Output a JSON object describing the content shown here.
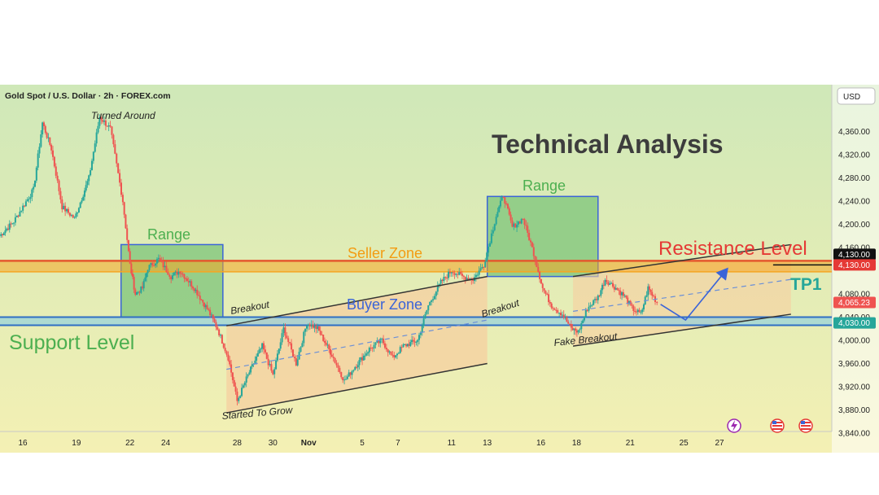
{
  "header": {
    "symbol_title": "Gold Spot / U.S. Dollar · 2h · FOREX.com",
    "currency": "USD"
  },
  "colors": {
    "bg_top": "#cfe8b8",
    "bg_bottom": "#f4f0b4",
    "up": "#26a69a",
    "down": "#ef5350",
    "green_label": "#4caf50",
    "orange_label": "#f39c12",
    "blue_label": "#3a64d8",
    "red_label": "#e53935",
    "range_fill": "#7cc47a",
    "channel_fill": "#f6cfa0",
    "seller_band": "#f5a623",
    "seller_line": "#e4572e",
    "buyer_band": "#8ecfe0",
    "buyer_line": "#2f6fc4"
  },
  "chart_data": {
    "type": "candlestick",
    "title": "Gold Spot / U.S. Dollar · 2h · FOREX.com",
    "y_axis": {
      "unit": "USD",
      "ylim": [
        3840,
        4400
      ],
      "ticks": [
        "4,360.00",
        "4,320.00",
        "4,280.00",
        "4,240.00",
        "4,200.00",
        "4,160.00",
        "4,080.00",
        "4,040.00",
        "4,000.00",
        "3,960.00",
        "3,920.00",
        "3,880.00",
        "3,840.00"
      ],
      "tick_values": [
        4360,
        4320,
        4280,
        4240,
        4200,
        4160,
        4080,
        4040,
        4000,
        3960,
        3920,
        3880,
        3840
      ]
    },
    "x_axis": {
      "ticks": [
        "16",
        "19",
        "22",
        "24",
        "28",
        "30",
        "Nov",
        "5",
        "7",
        "11",
        "13",
        "16",
        "18",
        "21",
        "25",
        "27"
      ],
      "tick_positions": [
        0,
        3,
        6,
        8,
        12,
        14,
        16,
        19,
        21,
        24,
        26,
        29,
        31,
        34,
        37,
        39
      ]
    },
    "price_markers": [
      {
        "label": "4,130.00",
        "value": 4130,
        "color": "#111111"
      },
      {
        "label": "4,130.00",
        "value": 4130,
        "color": "#e53935"
      },
      {
        "label": "4,065.23",
        "value": 4065.23,
        "color": "#ef5350"
      },
      {
        "label": "4,030.00",
        "value": 4030,
        "color": "#26a69a"
      }
    ],
    "key_path": [
      [
        -1.3,
        4180
      ],
      [
        -0.5,
        4205
      ],
      [
        0.6,
        4260
      ],
      [
        1.1,
        4375
      ],
      [
        1.6,
        4330
      ],
      [
        2.2,
        4230
      ],
      [
        2.9,
        4210
      ],
      [
        3.7,
        4280
      ],
      [
        4.3,
        4385
      ],
      [
        4.9,
        4365
      ],
      [
        5.6,
        4240
      ],
      [
        6.0,
        4130
      ],
      [
        6.3,
        4080
      ],
      [
        6.7,
        4090
      ],
      [
        7.0,
        4125
      ],
      [
        7.6,
        4140
      ],
      [
        8.3,
        4110
      ],
      [
        8.8,
        4120
      ],
      [
        9.6,
        4090
      ],
      [
        10.4,
        4050
      ],
      [
        10.9,
        4020
      ],
      [
        11.5,
        3970
      ],
      [
        12.0,
        3895
      ],
      [
        12.6,
        3940
      ],
      [
        13.4,
        3990
      ],
      [
        14.0,
        3940
      ],
      [
        14.6,
        4020
      ],
      [
        15.3,
        3960
      ],
      [
        15.9,
        4030
      ],
      [
        16.5,
        4020
      ],
      [
        17.3,
        3975
      ],
      [
        18.0,
        3930
      ],
      [
        18.6,
        3955
      ],
      [
        19.4,
        3985
      ],
      [
        20.1,
        4000
      ],
      [
        20.7,
        3970
      ],
      [
        21.3,
        3990
      ],
      [
        22.1,
        4000
      ],
      [
        22.7,
        4060
      ],
      [
        23.4,
        4100
      ],
      [
        24.0,
        4120
      ],
      [
        24.6,
        4110
      ],
      [
        25.2,
        4105
      ],
      [
        25.8,
        4130
      ],
      [
        26.5,
        4215
      ],
      [
        26.9,
        4250
      ],
      [
        27.4,
        4195
      ],
      [
        28.0,
        4210
      ],
      [
        28.6,
        4150
      ],
      [
        29.1,
        4090
      ],
      [
        29.6,
        4060
      ],
      [
        30.2,
        4045
      ],
      [
        30.7,
        4020
      ],
      [
        31.1,
        4015
      ],
      [
        31.6,
        4055
      ],
      [
        32.2,
        4075
      ],
      [
        32.6,
        4105
      ],
      [
        33.2,
        4090
      ],
      [
        33.7,
        4075
      ],
      [
        34.1,
        4055
      ],
      [
        34.6,
        4045
      ],
      [
        35.0,
        4090
      ],
      [
        35.3,
        4075
      ],
      [
        35.5,
        4065
      ]
    ],
    "zones": {
      "seller_zone": {
        "label": "Seller Zone",
        "from": 4118,
        "to": 4137
      },
      "buyer_zone": {
        "label": "Buyer Zone",
        "from": 4026,
        "to": 4040
      }
    },
    "annotations": {
      "title": "Technical Analysis",
      "range_1": "Range",
      "range_2": "Range",
      "resistance": "Resistance Level",
      "support": "Support Level",
      "tp1": "TP1",
      "turned_around": "Turned Around",
      "breakout_1": "Breakout",
      "breakout_2": "Breakout",
      "fake_breakout": "Fake Breakout",
      "started_to_grow": "Started To Grow"
    },
    "icons": [
      "lightning-icon",
      "us-flag-icon",
      "us-flag-icon"
    ]
  }
}
